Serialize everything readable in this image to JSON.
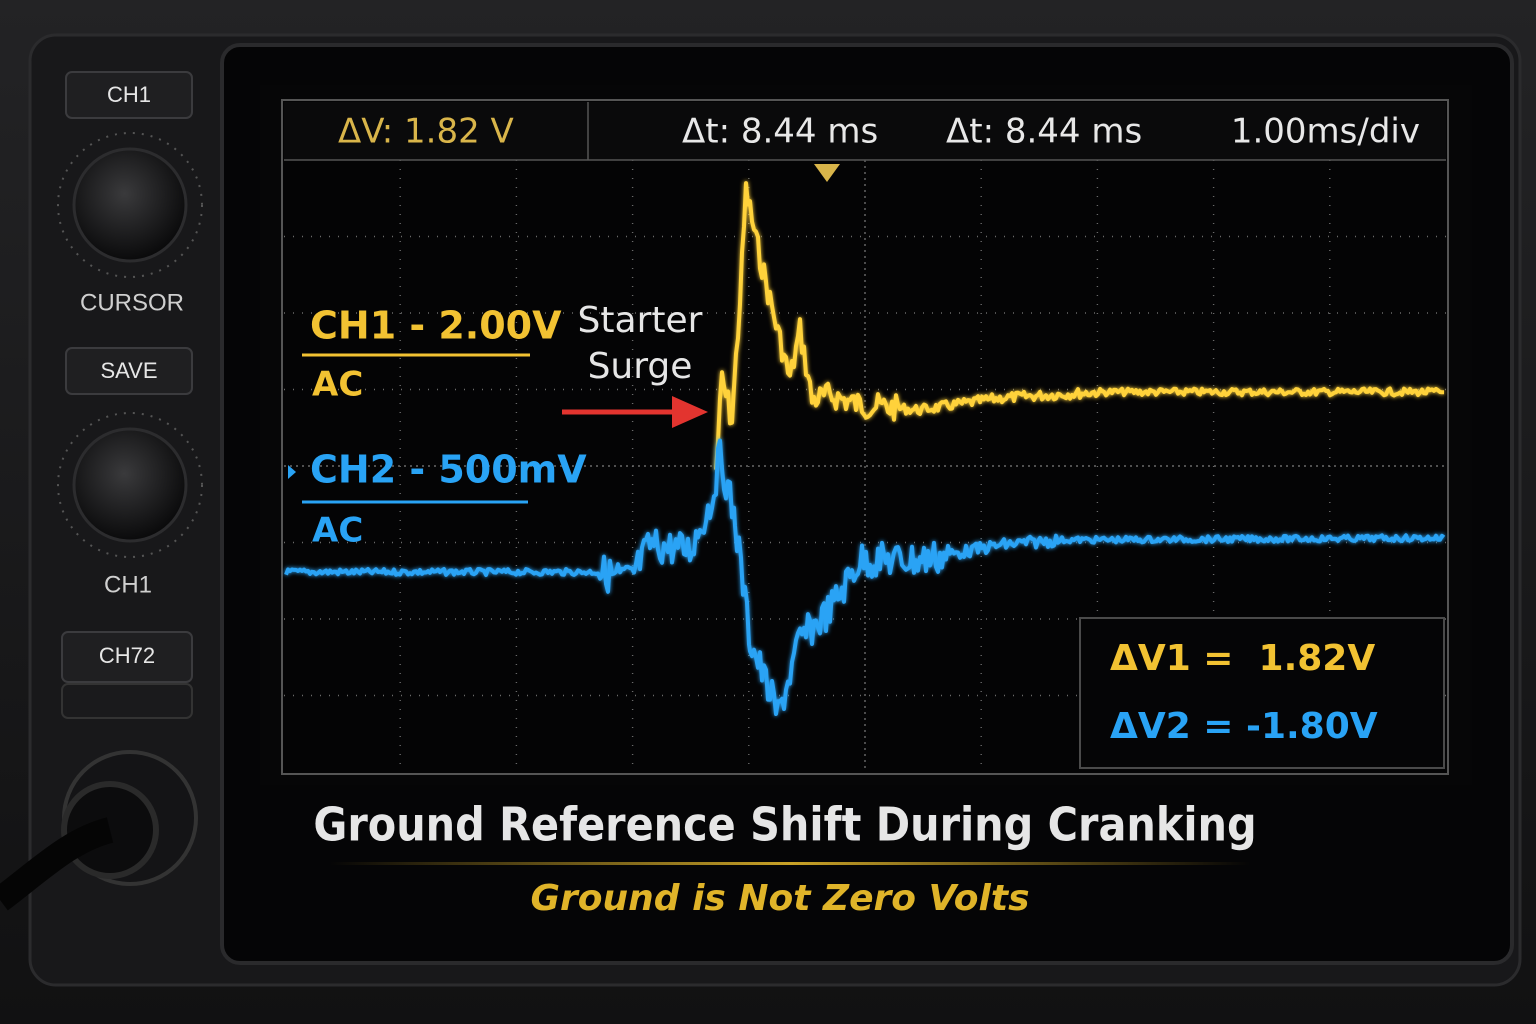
{
  "controls": {
    "buttons": [
      "CH1",
      "SAVE",
      "CH72"
    ],
    "labels": [
      "CURSOR",
      "CH1"
    ]
  },
  "readouts": [
    "ΔV: 1.82 V",
    "Δt: 8.44 ms",
    "Δt: 8.44 ms",
    "1.00ms/div"
  ],
  "channels": [
    {
      "label": "CH1 - 2.00V",
      "coupling": "AC"
    },
    {
      "label": "CH2 - 500mV",
      "coupling": "AC"
    }
  ],
  "annotation": [
    "Starter",
    "Surge"
  ],
  "measurements": [
    "ΔV1 =  1.82V",
    "ΔV2 = -1.80V"
  ],
  "title": "Ground Reference Shift During Cranking",
  "subtitle": "Ground is Not Zero Volts"
}
